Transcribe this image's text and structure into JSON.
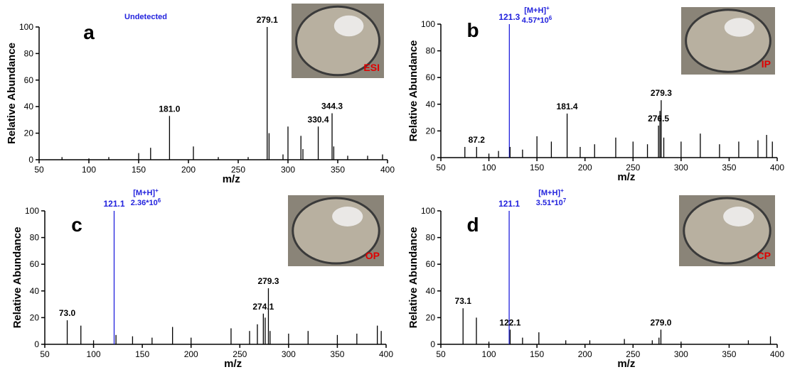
{
  "chart_data": [
    {
      "type": "bar",
      "panel_label": "a",
      "inset_label": "ESI",
      "annotation": "Undetected",
      "x_label": "m/z",
      "y_label": "Relative Abundance",
      "xlim": [
        50,
        400
      ],
      "ylim": [
        0,
        100
      ],
      "xticks": [
        50,
        100,
        150,
        200,
        250,
        300,
        350,
        400
      ],
      "yticks": [
        0,
        20,
        40,
        60,
        80,
        100
      ],
      "x": [
        73,
        100,
        120,
        150,
        162,
        181.0,
        205,
        230,
        260,
        279.1,
        281,
        295,
        300,
        313,
        315,
        330.4,
        344.3,
        346,
        360,
        380,
        395
      ],
      "values": [
        2,
        1,
        2,
        5,
        9,
        33,
        10,
        2,
        2,
        100,
        20,
        4,
        25,
        18,
        8,
        25,
        35,
        10,
        3,
        3,
        4
      ],
      "peak_labels": [
        null,
        null,
        null,
        null,
        null,
        "181.0",
        null,
        null,
        null,
        "279.1",
        null,
        null,
        null,
        null,
        null,
        "330.4",
        "344.3",
        null,
        null,
        null,
        null
      ],
      "colors": [
        "#000",
        "#000",
        "#000",
        "#000",
        "#000",
        "#000",
        "#000",
        "#000",
        "#000",
        "#000",
        "#000",
        "#000",
        "#000",
        "#000",
        "#000",
        "#000",
        "#000",
        "#000",
        "#000",
        "#000",
        "#000"
      ]
    },
    {
      "type": "bar",
      "panel_label": "b",
      "inset_label": "IP",
      "annotation": {
        "ion": "[M+H]",
        "charge": "+",
        "intensity": "4.57*10",
        "exponent": "6"
      },
      "x_label": "m/z",
      "y_label": "Relative Abundance",
      "xlim": [
        50,
        400
      ],
      "ylim": [
        0,
        100
      ],
      "xticks": [
        50,
        100,
        150,
        200,
        250,
        300,
        350,
        400
      ],
      "yticks": [
        0,
        20,
        40,
        60,
        80,
        100
      ],
      "x": [
        75,
        87.2,
        100,
        110,
        121.3,
        122,
        135,
        150,
        165,
        181.4,
        195,
        210,
        232,
        250,
        265,
        276.5,
        278,
        279.3,
        282,
        300,
        320,
        340,
        360,
        380,
        389,
        395
      ],
      "values": [
        8,
        8,
        3,
        5,
        100,
        8,
        6,
        16,
        12,
        33,
        8,
        10,
        15,
        12,
        10,
        24,
        35,
        43,
        15,
        12,
        18,
        10,
        12,
        13,
        17,
        12
      ],
      "peak_labels": [
        null,
        "87.2",
        null,
        null,
        "121.3",
        null,
        null,
        null,
        null,
        "181.4",
        null,
        null,
        null,
        null,
        null,
        "276.5",
        null,
        "279.3",
        null,
        null,
        null,
        null,
        null,
        null,
        null,
        null
      ],
      "colors": [
        "#000",
        "#000",
        "#000",
        "#000",
        "#2222dd",
        "#000",
        "#000",
        "#000",
        "#000",
        "#000",
        "#000",
        "#000",
        "#000",
        "#000",
        "#000",
        "#000",
        "#000",
        "#000",
        "#000",
        "#000",
        "#000",
        "#000",
        "#000",
        "#000",
        "#000",
        "#000"
      ]
    },
    {
      "type": "bar",
      "panel_label": "c",
      "inset_label": "OP",
      "annotation": {
        "ion": "[M+H]",
        "charge": "+",
        "intensity": "2.36*10",
        "exponent": "6"
      },
      "x_label": "m/z",
      "y_label": "Relative Abundance",
      "xlim": [
        50,
        400
      ],
      "ylim": [
        0,
        100
      ],
      "xticks": [
        50,
        100,
        150,
        200,
        250,
        300,
        350,
        400
      ],
      "yticks": [
        0,
        20,
        40,
        60,
        80,
        100
      ],
      "x": [
        73.0,
        87,
        100,
        121.1,
        123,
        140,
        160,
        181,
        200,
        241,
        260,
        268,
        274.1,
        276,
        279.3,
        281,
        300,
        320,
        350,
        370,
        391,
        395
      ],
      "values": [
        18,
        14,
        3,
        100,
        7,
        6,
        5,
        13,
        5,
        12,
        10,
        15,
        23,
        20,
        42,
        10,
        8,
        10,
        7,
        8,
        14,
        10
      ],
      "peak_labels": [
        "73.0",
        null,
        null,
        "121.1",
        null,
        null,
        null,
        null,
        null,
        null,
        null,
        null,
        "274.1",
        null,
        "279.3",
        null,
        null,
        null,
        null,
        null,
        null,
        null
      ],
      "colors": [
        "#000",
        "#000",
        "#000",
        "#2222dd",
        "#000",
        "#000",
        "#000",
        "#000",
        "#000",
        "#000",
        "#000",
        "#000",
        "#000",
        "#000",
        "#000",
        "#000",
        "#000",
        "#000",
        "#000",
        "#000",
        "#000",
        "#000"
      ]
    },
    {
      "type": "bar",
      "panel_label": "d",
      "inset_label": "CP",
      "annotation": {
        "ion": "[M+H]",
        "charge": "+",
        "intensity": "3.51*10",
        "exponent": "7"
      },
      "x_label": "m/z",
      "y_label": "Relative Abundance",
      "xlim": [
        50,
        400
      ],
      "ylim": [
        0,
        100
      ],
      "xticks": [
        50,
        100,
        150,
        200,
        250,
        300,
        350,
        400
      ],
      "yticks": [
        0,
        20,
        40,
        60,
        80,
        100
      ],
      "x": [
        73.1,
        87,
        100,
        121.1,
        122.1,
        135,
        152,
        180,
        205,
        241,
        270,
        277,
        279.0,
        300,
        370,
        393
      ],
      "values": [
        27,
        20,
        2,
        100,
        11,
        5,
        9,
        3,
        3,
        4,
        3,
        5,
        11,
        2,
        3,
        6
      ],
      "peak_labels": [
        "73.1",
        null,
        null,
        "121.1",
        "122.1",
        null,
        null,
        null,
        null,
        null,
        null,
        null,
        "279.0",
        null,
        null,
        null
      ],
      "colors": [
        "#000",
        "#000",
        "#000",
        "#2222dd",
        "#000",
        "#000",
        "#000",
        "#000",
        "#000",
        "#000",
        "#000",
        "#000",
        "#000",
        "#000",
        "#000",
        "#000"
      ]
    }
  ]
}
